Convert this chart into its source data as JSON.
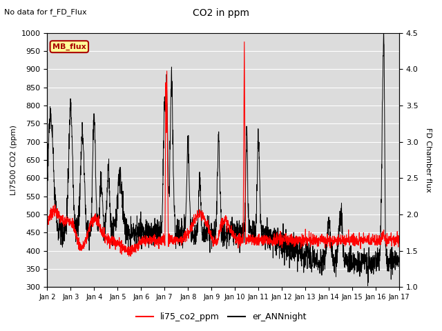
{
  "title": "CO2 in ppm",
  "subtitle": "No data for f_FD_Flux",
  "ylabel_left": "LI7500 CO2 (ppm)",
  "ylabel_right": "FD Chamber flux",
  "ylim_left": [
    300,
    1000
  ],
  "ylim_right": [
    1.0,
    4.5
  ],
  "xtick_labels": [
    "Jan 2",
    "Jan 3",
    "Jan 4",
    "Jan 5",
    "Jan 6",
    "Jan 7",
    "Jan 8",
    "Jan 9",
    "Jan 10",
    "Jan 11",
    "Jan 12",
    "Jan 13",
    "Jan 14",
    "Jan 15",
    "Jan 16",
    "Jan 17"
  ],
  "yticks_left": [
    300,
    350,
    400,
    450,
    500,
    550,
    600,
    650,
    700,
    750,
    800,
    850,
    900,
    950,
    1000
  ],
  "yticks_right": [
    1.0,
    1.5,
    2.0,
    2.5,
    3.0,
    3.5,
    4.0,
    4.5
  ],
  "legend_label_red": "li75_co2_ppm",
  "legend_label_black": "er_ANNnight",
  "legend_box_label": "MB_flux",
  "plot_bg_color": "#dcdcdc",
  "red_color": "#ff0000",
  "black_color": "#000000",
  "white_color": "#ffffff"
}
